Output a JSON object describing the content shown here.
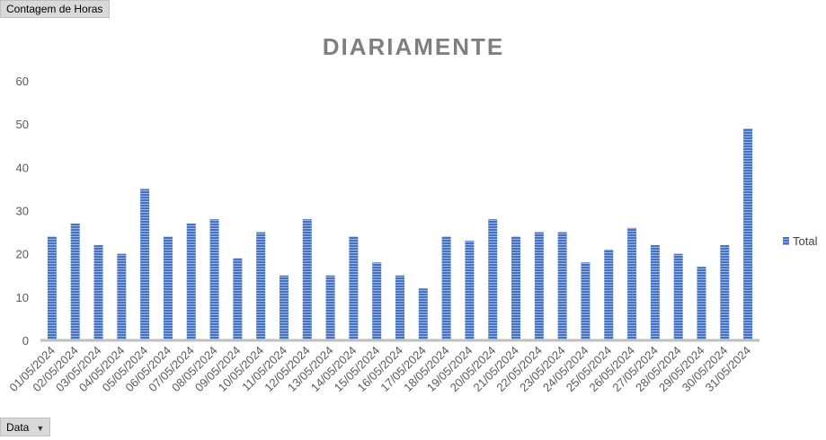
{
  "pivot": {
    "values_field": "Contagem de Horas",
    "axis_field": "Data",
    "axis_dropdown_icon": "chevron-down-icon"
  },
  "chart_data": {
    "type": "bar",
    "title": "DIARIAMENTE",
    "xlabel": "",
    "ylabel": "",
    "ylim": [
      0,
      60
    ],
    "yticks": [
      "0",
      "10",
      "20",
      "30",
      "40",
      "50",
      "60"
    ],
    "grid": false,
    "legend_position": "right",
    "bar_color": "#4472c4",
    "categories": [
      "01/05/2024",
      "02/05/2024",
      "03/05/2024",
      "04/05/2024",
      "05/05/2024",
      "06/05/2024",
      "07/05/2024",
      "08/05/2024",
      "09/05/2024",
      "10/05/2024",
      "11/05/2024",
      "12/05/2024",
      "13/05/2024",
      "14/05/2024",
      "15/05/2024",
      "16/05/2024",
      "17/05/2024",
      "18/05/2024",
      "19/05/2024",
      "20/05/2024",
      "21/05/2024",
      "22/05/2024",
      "23/05/2024",
      "24/05/2024",
      "25/05/2024",
      "26/05/2024",
      "27/05/2024",
      "28/05/2024",
      "29/05/2024",
      "30/05/2024",
      "31/05/2024"
    ],
    "series": [
      {
        "name": "Total",
        "values": [
          24,
          27,
          22,
          20,
          35,
          24,
          27,
          28,
          19,
          25,
          15,
          28,
          15,
          24,
          18,
          15,
          12,
          24,
          23,
          28,
          24,
          25,
          25,
          18,
          21,
          26,
          22,
          20,
          17,
          22,
          49
        ]
      }
    ]
  }
}
